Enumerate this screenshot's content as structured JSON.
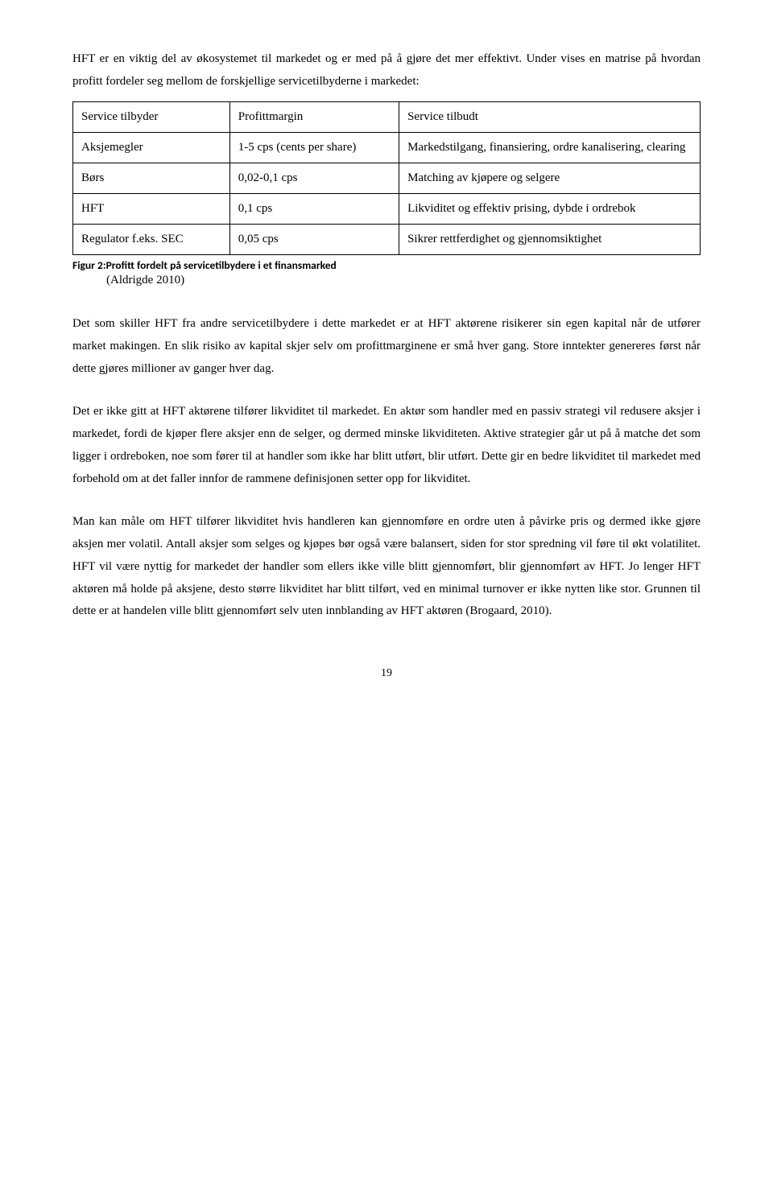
{
  "intro": {
    "p1": "HFT er en viktig del av økosystemet til markedet og er med på å gjøre det mer effektivt. Under vises en matrise på hvordan profitt fordeler seg mellom de forskjellige servicetilbyderne i markedet:"
  },
  "table": {
    "header": {
      "c1": "Service tilbyder",
      "c2": "Profittmargin",
      "c3": "Service tilbudt"
    },
    "rows": [
      {
        "c1": "Aksjemegler",
        "c2": "1-5 cps (cents per share)",
        "c3": "Markedstilgang, finansiering, ordre kanalisering, clearing"
      },
      {
        "c1": "Børs",
        "c2": "0,02-0,1 cps",
        "c3": "Matching av kjøpere og selgere"
      },
      {
        "c1": "HFT",
        "c2": "0,1 cps",
        "c3": "Likviditet og effektiv prising, dybde i ordrebok"
      },
      {
        "c1": "Regulator f.eks. SEC",
        "c2": "0,05 cps",
        "c3": "Sikrer rettferdighet og gjennomsiktighet"
      }
    ]
  },
  "figure": {
    "caption": "Figur 2:Profitt fordelt på servicetilbydere i et finansmarked",
    "source": "(Aldrigde 2010)"
  },
  "body": {
    "p2": "Det som skiller HFT fra andre servicetilbydere i dette markedet er at HFT aktørene risikerer sin egen kapital når de utfører market makingen. En slik risiko av kapital skjer selv om profittmarginene er små hver gang. Store inntekter genereres først når dette gjøres millioner av ganger hver dag.",
    "p3": "Det er ikke gitt at HFT aktørene tilfører likviditet til markedet. En aktør som handler med en passiv strategi vil redusere aksjer i markedet, fordi de kjøper flere aksjer enn de selger, og dermed minske likviditeten. Aktive strategier går ut på å matche det som ligger i ordreboken, noe som fører til at handler som ikke har blitt utført, blir utført. Dette gir en bedre likviditet til markedet med forbehold om at det faller innfor de rammene definisjonen setter opp for likviditet.",
    "p4": "Man kan måle om HFT tilfører likviditet hvis handleren kan gjennomføre en ordre uten å påvirke pris og dermed ikke gjøre aksjen mer volatil. Antall aksjer som selges og kjøpes bør også være balansert, siden for stor spredning vil føre til økt volatilitet. HFT vil være nyttig for markedet der handler som ellers ikke ville blitt gjennomført, blir gjennomført av HFT. Jo lenger HFT aktøren må holde på aksjene, desto større likviditet har blitt tilført, ved en minimal turnover er ikke nytten like stor. Grunnen til dette er at handelen ville blitt gjennomført selv uten innblanding av HFT aktøren (Brogaard, 2010)."
  },
  "page_number": "19"
}
